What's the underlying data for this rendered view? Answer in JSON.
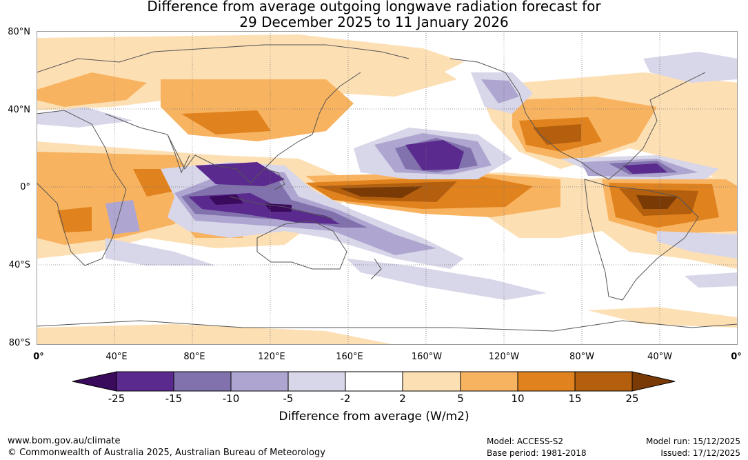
{
  "title": {
    "line1": "Difference from average outgoing longwave radiation forecast for",
    "line2": "29 December 2025 to 11 January 2026"
  },
  "axes": {
    "lat_labels": [
      "80°N",
      "40°N",
      "0°",
      "40°S",
      "80°S"
    ],
    "lon_labels": [
      "0°",
      "40°E",
      "80°E",
      "120°E",
      "160°E",
      "160°W",
      "120°W",
      "80°W",
      "40°W",
      "0°"
    ]
  },
  "colorbar": {
    "title": "Difference from average (W/m2)",
    "tick_labels": [
      "-25",
      "-15",
      "-10",
      "-5",
      "-2",
      "2",
      "5",
      "10",
      "15",
      "25"
    ],
    "colors": {
      "below_min": "#3a0a5c",
      "b1": "#5a2a8e",
      "b2": "#8171ad",
      "b3": "#aea6d0",
      "b4": "#d8d6e9",
      "b5": "#ffffff",
      "b6": "#fddfb4",
      "b7": "#f8b360",
      "b8": "#e0821e",
      "b9": "#b35f0e",
      "above_max": "#7a3a06"
    }
  },
  "footer": {
    "website": "www.bom.gov.au/climate",
    "copyright": "© Commonwealth of Australia 2025, Australian Bureau of Meteorology",
    "model": "Model: ACCESS-S2",
    "base_period": "Base period: 1981-2018",
    "model_run": "Model run: 15/12/2025",
    "issued": "Issued: 17/12/2025"
  }
}
